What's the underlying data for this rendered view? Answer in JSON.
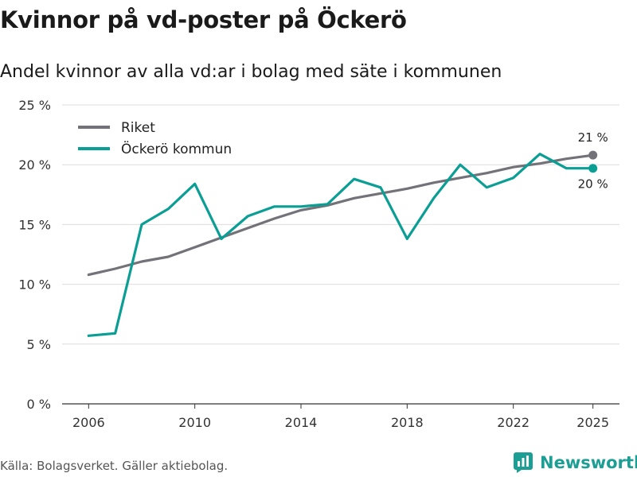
{
  "header": {
    "title": "Kvinnor på vd-poster på Öckerö",
    "subtitle": "Andel kvinnor av alla vd:ar i bolag med säte i kommunen"
  },
  "footer": {
    "source": "Källa: Bolagsverket. Gäller aktiebolag.",
    "brand": "Newsworthy"
  },
  "colors": {
    "riket": "#737278",
    "ockero": "#0b9e94",
    "grid": "#dddddd"
  },
  "chart_data": {
    "type": "line",
    "x": [
      2006,
      2007,
      2008,
      2009,
      2010,
      2011,
      2012,
      2013,
      2014,
      2015,
      2016,
      2017,
      2018,
      2019,
      2020,
      2021,
      2022,
      2023,
      2024,
      2025
    ],
    "xticks": [
      2006,
      2010,
      2014,
      2018,
      2022,
      2025
    ],
    "ylim": [
      0,
      25
    ],
    "yticks": [
      0,
      5,
      10,
      15,
      20,
      25
    ],
    "ytick_labels": [
      "0 %",
      "5 %",
      "10 %",
      "15 %",
      "20 %",
      "25 %"
    ],
    "grid": true,
    "legend": "top-left",
    "series": [
      {
        "name": "Riket",
        "color": "#737278",
        "values": [
          10.8,
          11.3,
          11.9,
          12.3,
          13.1,
          13.9,
          14.7,
          15.5,
          16.2,
          16.6,
          17.2,
          17.6,
          18.0,
          18.5,
          18.9,
          19.3,
          19.8,
          20.1,
          20.5,
          20.8
        ],
        "end_label": "21 %"
      },
      {
        "name": "Öckerö kommun",
        "color": "#0b9e94",
        "values": [
          5.7,
          5.9,
          15.0,
          16.3,
          18.4,
          13.8,
          15.7,
          16.5,
          16.5,
          16.7,
          18.8,
          18.1,
          13.8,
          17.2,
          20.0,
          18.1,
          18.9,
          20.9,
          19.7,
          19.7
        ],
        "end_label": "20 %"
      }
    ]
  }
}
